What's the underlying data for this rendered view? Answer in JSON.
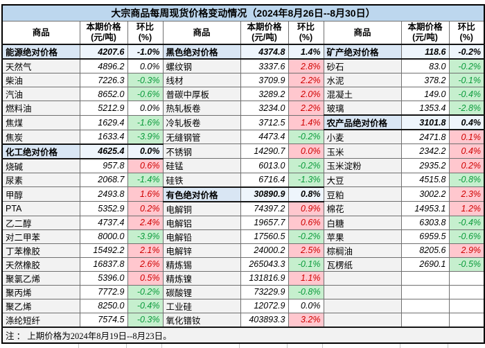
{
  "title": "大宗商品每周现货价格变动情况（2024年8月26日--8月30日）",
  "note": "注 ： 上期价格为2024年8月19日--8月23日。",
  "header": {
    "commodity": "商品",
    "price_line1": "本期价格",
    "price_line2": "(元/吨)",
    "pct_line1": "环比",
    "pct_line2": "(%)"
  },
  "colors": {
    "title_bg": "#BDD7EE",
    "cat_name_bg": "#D9E6F4",
    "cat_num_bg": "#EEF5FC",
    "item_name_bg": "#F2F2F2",
    "up_bg": "#FFC7CE",
    "up_text": "#D00000",
    "down_bg": "#C6EFCE",
    "down_text": "#0B9B3B",
    "note_bg": "#F2F2F2"
  },
  "chart_data": {
    "type": "table",
    "title": "大宗商品每周现货价格变动情况（2024年8月26日--8月30日）",
    "columns": [
      "商品",
      "本期价格(元/吨)",
      "环比(%)"
    ],
    "row_count": 20,
    "groups": [
      {
        "rows": [
          {
            "name": "能源绝对价格",
            "price": "4207.6",
            "pct": "-1.0%",
            "type": "category"
          },
          {
            "name": "天然气",
            "price": "4896.2",
            "pct": "0.0%",
            "type": "flat"
          },
          {
            "name": "柴油",
            "price": "7226.3",
            "pct": "-0.3%",
            "type": "down"
          },
          {
            "name": "汽油",
            "price": "8652.0",
            "pct": "-0.6%",
            "type": "down"
          },
          {
            "name": "燃料油",
            "price": "5212.9",
            "pct": "0.0%",
            "type": "flat"
          },
          {
            "name": "焦煤",
            "price": "1629.4",
            "pct": "-1.6%",
            "type": "down"
          },
          {
            "name": "焦炭",
            "price": "1633.4",
            "pct": "-3.9%",
            "type": "down"
          },
          {
            "name": "化工绝对价格",
            "price": "4625.4",
            "pct": "0.0%",
            "type": "category"
          },
          {
            "name": "烧碱",
            "price": "957.8",
            "pct": "0.6%",
            "type": "up"
          },
          {
            "name": "尿素",
            "price": "2068.7",
            "pct": "-1.4%",
            "type": "down"
          },
          {
            "name": "甲醇",
            "price": "2493.8",
            "pct": "1.6%",
            "type": "up"
          },
          {
            "name": "PTA",
            "price": "5352.9",
            "pct": "0.2%",
            "type": "up"
          },
          {
            "name": "乙二醇",
            "price": "4737.4",
            "pct": "2.4%",
            "type": "up"
          },
          {
            "name": "对二甲苯",
            "price": "8000.0",
            "pct": "-3.9%",
            "type": "down"
          },
          {
            "name": "丁苯橡胶",
            "price": "15492.2",
            "pct": "2.1%",
            "type": "up"
          },
          {
            "name": "天然橡胶",
            "price": "16837.8",
            "pct": "2.6%",
            "type": "up"
          },
          {
            "name": "聚氯乙烯",
            "price": "5396.0",
            "pct": "0.5%",
            "type": "up"
          },
          {
            "name": "聚丙烯",
            "price": "7772.9",
            "pct": "-0.2%",
            "type": "down"
          },
          {
            "name": "聚乙烯",
            "price": "8250.0",
            "pct": "-0.4%",
            "type": "down"
          },
          {
            "name": "涤纶短纤",
            "price": "7574.5",
            "pct": "-0.3%",
            "type": "down"
          }
        ]
      },
      {
        "rows": [
          {
            "name": "黑色绝对价格",
            "price": "4374.8",
            "pct": "1.4%",
            "type": "category"
          },
          {
            "name": "螺纹钢",
            "price": "3337.6",
            "pct": "2.8%",
            "type": "up"
          },
          {
            "name": "线材",
            "price": "3709.9",
            "pct": "2.2%",
            "type": "up"
          },
          {
            "name": "普碳中厚板",
            "price": "3289.2",
            "pct": "2.0%",
            "type": "up"
          },
          {
            "name": "热轧板卷",
            "price": "3234.0",
            "pct": "2.2%",
            "type": "up"
          },
          {
            "name": "冷轧板卷",
            "price": "3712.5",
            "pct": "1.4%",
            "type": "up"
          },
          {
            "name": "无缝钢管",
            "price": "4473.4",
            "pct": "-0.2%",
            "type": "down"
          },
          {
            "name": "不锈钢",
            "price": "14290.7",
            "pct": "0.0%",
            "type": "up"
          },
          {
            "name": "硅锰",
            "price": "6013.0",
            "pct": "-0.2%",
            "type": "down"
          },
          {
            "name": "硅铁",
            "price": "6716.4",
            "pct": "-1.3%",
            "type": "down"
          },
          {
            "name": "有色绝对价格",
            "price": "30890.9",
            "pct": "0.8%",
            "type": "category"
          },
          {
            "name": "电解铜",
            "price": "74397.2",
            "pct": "0.9%",
            "type": "up"
          },
          {
            "name": "电解铝",
            "price": "19657.7",
            "pct": "0.6%",
            "type": "up"
          },
          {
            "name": "电解铅",
            "price": "17560.5",
            "pct": "-0.2%",
            "type": "down"
          },
          {
            "name": "电解锌",
            "price": "24000.2",
            "pct": "2.5%",
            "type": "up"
          },
          {
            "name": "精炼锡",
            "price": "265043.3",
            "pct": "-0.1%",
            "type": "down"
          },
          {
            "name": "精炼镍",
            "price": "131816.9",
            "pct": "1.1%",
            "type": "up"
          },
          {
            "name": "碳酸锂",
            "price": "73229.9",
            "pct": "-0.8%",
            "type": "down"
          },
          {
            "name": "工业硅",
            "price": "12072.9",
            "pct": "0.0%",
            "type": "flat"
          },
          {
            "name": "氧化镨钕",
            "price": "403893.3",
            "pct": "3.2%",
            "type": "up"
          }
        ]
      },
      {
        "rows": [
          {
            "name": "矿产绝对价格",
            "price": "118.6",
            "pct": "-0.2%",
            "type": "category"
          },
          {
            "name": "砂石",
            "price": "83.0",
            "pct": "-0.2%",
            "type": "down"
          },
          {
            "name": "水泥",
            "price": "378.2",
            "pct": "-0.1%",
            "type": "down"
          },
          {
            "name": "混凝土",
            "price": "149.0",
            "pct": "-0.4%",
            "type": "down"
          },
          {
            "name": "玻璃",
            "price": "1353.4",
            "pct": "-2.8%",
            "type": "down"
          },
          {
            "name": "农产品绝对价格",
            "price": "3101.8",
            "pct": "0.4%",
            "type": "category"
          },
          {
            "name": "小麦",
            "price": "2471.8",
            "pct": "0.1%",
            "type": "up"
          },
          {
            "name": "玉米",
            "price": "2342.2",
            "pct": "0.4%",
            "type": "up"
          },
          {
            "name": "玉米淀粉",
            "price": "2935.2",
            "pct": "0.2%",
            "type": "up"
          },
          {
            "name": "大豆",
            "price": "4515.8",
            "pct": "-0.8%",
            "type": "down"
          },
          {
            "name": "豆粕",
            "price": "3002.2",
            "pct": "2.3%",
            "type": "up"
          },
          {
            "name": "棉花",
            "price": "14953.1",
            "pct": "1.2%",
            "type": "up"
          },
          {
            "name": "白糖",
            "price": "6303.8",
            "pct": "-0.4%",
            "type": "down"
          },
          {
            "name": "苹果",
            "price": "6959.5",
            "pct": "-0.6%",
            "type": "down"
          },
          {
            "name": "棕榈油",
            "price": "8205.6",
            "pct": "2.9%",
            "type": "up"
          },
          {
            "name": "瓦楞纸",
            "price": "2690.1",
            "pct": "-0.5%",
            "type": "down"
          },
          {
            "name": "",
            "price": "",
            "pct": "",
            "type": "empty"
          },
          {
            "name": "",
            "price": "",
            "pct": "",
            "type": "empty"
          },
          {
            "name": "",
            "price": "",
            "pct": "",
            "type": "empty"
          },
          {
            "name": "",
            "price": "",
            "pct": "",
            "type": "empty"
          }
        ]
      }
    ]
  }
}
